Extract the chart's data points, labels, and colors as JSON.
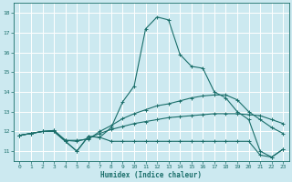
{
  "xlabel": "Humidex (Indice chaleur)",
  "bg_color": "#cce9f0",
  "grid_color": "#ffffff",
  "line_color": "#1a6e6a",
  "xlim": [
    -0.5,
    23.5
  ],
  "ylim": [
    10.5,
    18.5
  ],
  "yticks": [
    11,
    12,
    13,
    14,
    15,
    16,
    17,
    18
  ],
  "xticks": [
    0,
    1,
    2,
    3,
    4,
    5,
    6,
    7,
    8,
    9,
    10,
    11,
    12,
    13,
    14,
    15,
    16,
    17,
    18,
    19,
    20,
    21,
    22,
    23
  ],
  "line1_x": [
    0,
    1,
    2,
    3,
    4,
    5,
    6,
    7,
    8,
    9,
    10,
    11,
    12,
    13,
    14,
    15,
    16,
    17,
    18,
    19,
    20,
    21,
    22,
    23
  ],
  "line1_y": [
    11.8,
    11.9,
    12.0,
    12.0,
    11.5,
    11.0,
    11.75,
    11.7,
    11.5,
    11.5,
    11.5,
    11.5,
    11.5,
    11.5,
    11.5,
    11.5,
    11.5,
    11.5,
    11.5,
    11.5,
    11.5,
    10.8,
    10.7,
    11.1
  ],
  "line2_x": [
    0,
    1,
    2,
    3,
    4,
    5,
    6,
    7,
    8,
    9,
    10,
    11,
    12,
    13,
    14,
    15,
    16,
    17,
    18,
    19,
    20,
    21,
    22,
    23
  ],
  "line2_y": [
    11.8,
    11.9,
    12.0,
    12.0,
    11.5,
    11.0,
    11.75,
    11.7,
    12.2,
    13.5,
    14.3,
    17.2,
    17.8,
    17.65,
    15.9,
    15.3,
    15.2,
    14.0,
    13.7,
    13.0,
    12.6,
    11.0,
    10.7,
    11.1
  ],
  "line3_x": [
    0,
    1,
    2,
    3,
    4,
    5,
    6,
    7,
    8,
    9,
    10,
    11,
    12,
    13,
    14,
    15,
    16,
    17,
    18,
    19,
    20,
    21,
    22,
    23
  ],
  "line3_y": [
    11.8,
    11.9,
    12.0,
    12.05,
    11.55,
    11.55,
    11.6,
    12.0,
    12.3,
    12.65,
    12.9,
    13.1,
    13.3,
    13.4,
    13.55,
    13.7,
    13.8,
    13.85,
    13.85,
    13.6,
    13.0,
    12.6,
    12.2,
    11.9
  ],
  "line4_x": [
    0,
    1,
    2,
    3,
    4,
    5,
    6,
    7,
    8,
    9,
    10,
    11,
    12,
    13,
    14,
    15,
    16,
    17,
    18,
    19,
    20,
    21,
    22,
    23
  ],
  "line4_y": [
    11.8,
    11.9,
    12.0,
    12.05,
    11.55,
    11.5,
    11.65,
    11.9,
    12.1,
    12.25,
    12.4,
    12.5,
    12.6,
    12.7,
    12.75,
    12.8,
    12.85,
    12.9,
    12.9,
    12.9,
    12.85,
    12.8,
    12.6,
    12.4
  ]
}
